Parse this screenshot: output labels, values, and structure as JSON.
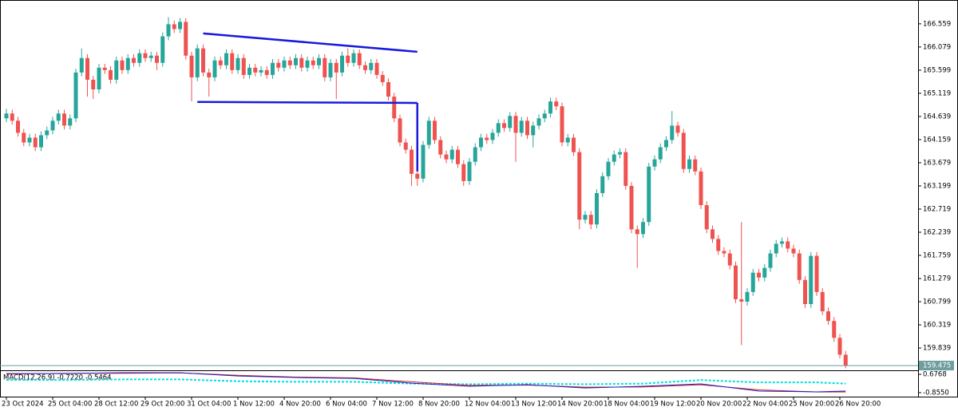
{
  "chart_data": {
    "type": "candlestick",
    "up_color": "#26a69a",
    "down_color": "#ef5350",
    "ylim": [
      159.41,
      167.02
    ],
    "yticks": [
      166.559,
      166.079,
      165.599,
      165.119,
      164.639,
      164.159,
      163.679,
      163.199,
      162.719,
      162.239,
      161.759,
      161.279,
      160.799,
      160.319,
      159.839
    ],
    "xlim": [
      -1,
      158
    ],
    "xticks": [
      {
        "value": 0,
        "label": "23 Oct 2024"
      },
      {
        "value": 8,
        "label": "25 Oct 04:00"
      },
      {
        "value": 16,
        "label": "28 Oct 12:00"
      },
      {
        "value": 24,
        "label": "29 Oct 20:00"
      },
      {
        "value": 32,
        "label": "31 Oct 04:00"
      },
      {
        "value": 40,
        "label": "1 Nov 12:00"
      },
      {
        "value": 48,
        "label": "4 Nov 20:00"
      },
      {
        "value": 56,
        "label": "6 Nov 04:00"
      },
      {
        "value": 64,
        "label": "7 Nov 12:00"
      },
      {
        "value": 72,
        "label": "8 Nov 20:00"
      },
      {
        "value": 80,
        "label": "12 Nov 04:00"
      },
      {
        "value": 88,
        "label": "13 Nov 12:00"
      },
      {
        "value": 96,
        "label": "14 Nov 20:00"
      },
      {
        "value": 104,
        "label": "18 Nov 04:00"
      },
      {
        "value": 112,
        "label": "19 Nov 12:00"
      },
      {
        "value": 120,
        "label": "20 Nov 20:00"
      },
      {
        "value": 128,
        "label": "22 Nov 04:00"
      },
      {
        "value": 136,
        "label": "25 Nov 20:00"
      },
      {
        "value": 144,
        "label": "26 Nov 20:00"
      }
    ],
    "last_price": 159.475,
    "last_price_color": "#6e9e9e",
    "candles": [
      [
        164.6,
        164.8,
        164.52,
        164.7
      ],
      [
        164.7,
        164.78,
        164.47,
        164.55
      ],
      [
        164.55,
        164.63,
        164.22,
        164.3
      ],
      [
        164.3,
        164.38,
        164.02,
        164.1
      ],
      [
        164.1,
        164.28,
        164.02,
        164.2
      ],
      [
        164.2,
        164.28,
        163.92,
        164.0
      ],
      [
        164.0,
        164.33,
        163.92,
        164.25
      ],
      [
        164.25,
        164.43,
        164.17,
        164.35
      ],
      [
        164.35,
        164.63,
        164.27,
        164.55
      ],
      [
        164.55,
        164.78,
        164.47,
        164.7
      ],
      [
        164.7,
        164.78,
        164.37,
        164.45
      ],
      [
        164.45,
        164.68,
        164.37,
        164.6
      ],
      [
        164.6,
        165.63,
        164.52,
        165.55
      ],
      [
        165.55,
        166.05,
        165.47,
        165.85
      ],
      [
        165.85,
        165.93,
        165.05,
        165.4
      ],
      [
        165.4,
        165.48,
        165.0,
        165.2
      ],
      [
        165.2,
        165.73,
        165.12,
        165.65
      ],
      [
        165.65,
        165.73,
        165.52,
        165.6
      ],
      [
        165.6,
        165.68,
        165.32,
        165.4
      ],
      [
        165.4,
        165.88,
        165.32,
        165.8
      ],
      [
        165.8,
        165.88,
        165.52,
        165.6
      ],
      [
        165.6,
        165.93,
        165.52,
        165.85
      ],
      [
        165.85,
        165.93,
        165.67,
        165.75
      ],
      [
        165.75,
        166.03,
        165.67,
        165.95
      ],
      [
        165.95,
        166.03,
        165.77,
        165.85
      ],
      [
        165.85,
        165.98,
        165.77,
        165.9
      ],
      [
        165.9,
        165.98,
        165.6,
        165.75
      ],
      [
        165.75,
        166.38,
        165.67,
        166.3
      ],
      [
        166.3,
        166.7,
        166.22,
        166.55
      ],
      [
        166.55,
        166.63,
        166.37,
        166.45
      ],
      [
        166.45,
        166.68,
        166.37,
        166.6
      ],
      [
        166.6,
        166.68,
        165.82,
        165.9
      ],
      [
        165.9,
        165.98,
        164.95,
        165.45
      ],
      [
        165.45,
        166.13,
        165.37,
        166.05
      ],
      [
        166.05,
        166.13,
        165.47,
        165.55
      ],
      [
        165.55,
        165.63,
        165.05,
        165.45
      ],
      [
        165.45,
        165.88,
        165.37,
        165.8
      ],
      [
        165.8,
        165.88,
        165.62,
        165.7
      ],
      [
        165.7,
        166.03,
        165.62,
        165.95
      ],
      [
        165.95,
        166.03,
        165.52,
        165.6
      ],
      [
        165.6,
        165.93,
        165.52,
        165.85
      ],
      [
        165.85,
        165.93,
        165.42,
        165.5
      ],
      [
        165.5,
        165.73,
        165.42,
        165.65
      ],
      [
        165.65,
        165.73,
        165.47,
        165.55
      ],
      [
        165.55,
        165.68,
        165.47,
        165.6
      ],
      [
        165.6,
        165.68,
        165.42,
        165.5
      ],
      [
        165.5,
        165.83,
        165.42,
        165.75
      ],
      [
        165.75,
        165.83,
        165.57,
        165.65
      ],
      [
        165.65,
        165.88,
        165.57,
        165.8
      ],
      [
        165.8,
        165.88,
        165.62,
        165.7
      ],
      [
        165.7,
        165.93,
        165.62,
        165.85
      ],
      [
        165.85,
        165.93,
        165.57,
        165.65
      ],
      [
        165.65,
        165.88,
        165.57,
        165.8
      ],
      [
        165.8,
        165.88,
        165.62,
        165.7
      ],
      [
        165.7,
        165.93,
        165.62,
        165.85
      ],
      [
        165.85,
        165.93,
        165.37,
        165.45
      ],
      [
        165.45,
        165.83,
        165.37,
        165.75
      ],
      [
        165.75,
        165.83,
        165.0,
        165.55
      ],
      [
        165.55,
        165.98,
        165.47,
        165.9
      ],
      [
        165.9,
        166.05,
        165.67,
        165.75
      ],
      [
        165.75,
        166.03,
        165.67,
        165.95
      ],
      [
        165.95,
        166.03,
        165.62,
        165.7
      ],
      [
        165.7,
        165.78,
        165.52,
        165.6
      ],
      [
        165.6,
        165.83,
        165.52,
        165.75
      ],
      [
        165.75,
        165.83,
        165.42,
        165.5
      ],
      [
        165.5,
        165.58,
        165.27,
        165.35
      ],
      [
        165.35,
        165.43,
        164.97,
        165.05
      ],
      [
        165.05,
        165.13,
        164.52,
        164.6
      ],
      [
        164.6,
        164.68,
        164.02,
        164.1
      ],
      [
        164.1,
        164.18,
        163.87,
        163.95
      ],
      [
        163.95,
        164.03,
        163.2,
        163.45
      ],
      [
        163.45,
        163.53,
        163.2,
        163.35
      ],
      [
        163.35,
        164.13,
        163.27,
        164.05
      ],
      [
        164.05,
        164.63,
        163.97,
        164.55
      ],
      [
        164.55,
        164.63,
        164.07,
        164.15
      ],
      [
        164.15,
        164.23,
        163.77,
        163.85
      ],
      [
        163.85,
        163.93,
        163.67,
        163.75
      ],
      [
        163.75,
        164.03,
        163.67,
        163.95
      ],
      [
        163.95,
        164.03,
        163.57,
        163.65
      ],
      [
        163.65,
        163.73,
        163.2,
        163.3
      ],
      [
        163.3,
        163.78,
        163.22,
        163.7
      ],
      [
        163.7,
        164.08,
        163.62,
        164.0
      ],
      [
        164.0,
        164.28,
        163.92,
        164.2
      ],
      [
        164.2,
        164.28,
        164.07,
        164.15
      ],
      [
        164.15,
        164.38,
        164.07,
        164.3
      ],
      [
        164.3,
        164.58,
        164.22,
        164.5
      ],
      [
        164.5,
        164.58,
        164.32,
        164.4
      ],
      [
        164.4,
        164.73,
        164.32,
        164.65
      ],
      [
        164.65,
        164.73,
        163.7,
        164.3
      ],
      [
        164.3,
        164.63,
        164.22,
        164.55
      ],
      [
        164.55,
        164.63,
        164.17,
        164.25
      ],
      [
        164.25,
        164.53,
        164.0,
        164.45
      ],
      [
        164.45,
        164.68,
        164.37,
        164.6
      ],
      [
        164.6,
        164.78,
        164.52,
        164.7
      ],
      [
        164.7,
        165.03,
        164.62,
        164.95
      ],
      [
        164.95,
        165.03,
        164.77,
        164.85
      ],
      [
        164.85,
        164.93,
        164.02,
        164.1
      ],
      [
        164.1,
        164.28,
        164.02,
        164.2
      ],
      [
        164.2,
        164.28,
        163.82,
        163.9
      ],
      [
        163.9,
        163.98,
        162.3,
        162.5
      ],
      [
        162.5,
        162.68,
        162.42,
        162.6
      ],
      [
        162.6,
        162.68,
        162.3,
        162.4
      ],
      [
        162.4,
        163.13,
        162.32,
        163.05
      ],
      [
        163.05,
        163.48,
        162.97,
        163.4
      ],
      [
        163.4,
        163.78,
        163.32,
        163.7
      ],
      [
        163.7,
        163.93,
        163.62,
        163.85
      ],
      [
        163.85,
        163.98,
        163.77,
        163.9
      ],
      [
        163.9,
        163.98,
        163.12,
        163.2
      ],
      [
        163.2,
        163.28,
        162.22,
        162.3
      ],
      [
        162.3,
        162.38,
        161.5,
        162.2
      ],
      [
        162.2,
        162.53,
        162.12,
        162.45
      ],
      [
        162.45,
        163.68,
        162.37,
        163.6
      ],
      [
        163.6,
        163.83,
        163.52,
        163.75
      ],
      [
        163.75,
        164.08,
        163.67,
        164.0
      ],
      [
        164.0,
        164.23,
        163.92,
        164.15
      ],
      [
        164.15,
        164.75,
        164.07,
        164.45
      ],
      [
        164.45,
        164.53,
        164.22,
        164.3
      ],
      [
        164.3,
        164.38,
        163.47,
        163.55
      ],
      [
        163.55,
        163.83,
        163.47,
        163.75
      ],
      [
        163.75,
        163.83,
        163.42,
        163.5
      ],
      [
        163.5,
        163.58,
        162.72,
        162.8
      ],
      [
        162.8,
        162.88,
        162.22,
        162.3
      ],
      [
        162.3,
        162.38,
        162.02,
        162.1
      ],
      [
        162.1,
        162.18,
        161.77,
        161.85
      ],
      [
        161.85,
        161.93,
        161.72,
        161.8
      ],
      [
        161.8,
        161.88,
        161.47,
        161.55
      ],
      [
        161.55,
        161.63,
        160.77,
        160.85
      ],
      [
        160.85,
        162.45,
        159.9,
        160.8
      ],
      [
        160.8,
        161.08,
        160.72,
        161.0
      ],
      [
        161.0,
        161.48,
        160.92,
        161.4
      ],
      [
        161.4,
        161.48,
        161.22,
        161.3
      ],
      [
        161.3,
        161.58,
        161.22,
        161.5
      ],
      [
        161.5,
        161.88,
        161.42,
        161.8
      ],
      [
        161.8,
        162.08,
        161.72,
        162.0
      ],
      [
        162.0,
        162.13,
        161.92,
        162.05
      ],
      [
        162.05,
        162.13,
        161.82,
        161.9
      ],
      [
        161.9,
        161.98,
        161.72,
        161.8
      ],
      [
        161.8,
        161.88,
        161.17,
        161.25
      ],
      [
        161.25,
        161.33,
        160.67,
        160.75
      ],
      [
        160.75,
        161.83,
        160.67,
        161.75
      ],
      [
        161.75,
        161.83,
        160.92,
        161.0
      ],
      [
        161.0,
        161.08,
        160.52,
        160.6
      ],
      [
        160.6,
        160.68,
        160.32,
        160.4
      ],
      [
        160.4,
        160.48,
        159.97,
        160.05
      ],
      [
        160.05,
        160.13,
        159.62,
        159.7
      ],
      [
        159.7,
        159.78,
        159.42,
        159.475
      ]
    ],
    "trendlines": [
      {
        "color": "#1a1adc",
        "x": [
          34,
          71
        ],
        "y": [
          166.36,
          165.98
        ]
      },
      {
        "color": "#1a1adc",
        "x": [
          33,
          71
        ],
        "y": [
          164.94,
          164.92
        ]
      },
      {
        "color": "#1a1adc",
        "x": [
          71,
          71
        ],
        "y": [
          164.92,
          163.5
        ]
      }
    ],
    "macd": {
      "label": "MACD(12,26,9) -0.7220 -0.5464",
      "ylim": [
        -1.19,
        0.88
      ],
      "yticks": [
        0.6768,
        {
          "value": -0.855,
          "label": "-0.8550"
        }
      ],
      "x": [
        0,
        10,
        20,
        30,
        40,
        50,
        60,
        70,
        80,
        90,
        100,
        110,
        120,
        130,
        140,
        145
      ],
      "series": [
        {
          "color": "#00e0e0",
          "dashed": true,
          "values": [
            0.2,
            0.2,
            0.25,
            0.25,
            0.1,
            0.05,
            0.05,
            -0.1,
            -0.15,
            -0.1,
            -0.15,
            -0.1,
            0.2,
            0.0,
            0.0,
            -0.1
          ]
        },
        {
          "color": "#d02020",
          "values": [
            0.7,
            0.76,
            0.76,
            0.8,
            0.6,
            0.45,
            0.38,
            0.05,
            -0.25,
            -0.22,
            -0.4,
            -0.38,
            -0.2,
            -0.62,
            -0.8,
            -0.8
          ]
        },
        {
          "color": "#2020c0",
          "values": [
            0.74,
            0.74,
            0.81,
            0.81,
            0.54,
            0.41,
            0.34,
            -0.06,
            -0.32,
            -0.19,
            -0.46,
            -0.32,
            -0.12,
            -0.72,
            -0.79,
            -0.72
          ]
        }
      ]
    }
  }
}
